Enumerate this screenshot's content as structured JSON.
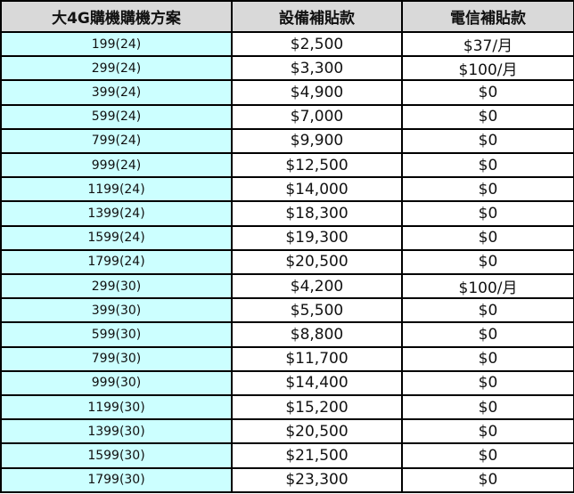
{
  "headers": [
    "大4G購機購機方案",
    "設備補貼款",
    "電信補貼款"
  ],
  "colors": {
    "header_bg": "#d9d9d9",
    "plan_bg": "#ccffff",
    "border": "#000000"
  },
  "rows": [
    [
      "199(24)",
      "$2,500",
      "$37/月"
    ],
    [
      "299(24)",
      "$3,300",
      "$100/月"
    ],
    [
      "399(24)",
      "$4,900",
      "$0"
    ],
    [
      "599(24)",
      "$7,000",
      "$0"
    ],
    [
      "799(24)",
      "$9,900",
      "$0"
    ],
    [
      "999(24)",
      "$12,500",
      "$0"
    ],
    [
      "1199(24)",
      "$14,000",
      "$0"
    ],
    [
      "1399(24)",
      "$18,300",
      "$0"
    ],
    [
      "1599(24)",
      "$19,300",
      "$0"
    ],
    [
      "1799(24)",
      "$20,500",
      "$0"
    ],
    [
      "299(30)",
      "$4,200",
      "$100/月"
    ],
    [
      "399(30)",
      "$5,500",
      "$0"
    ],
    [
      "599(30)",
      "$8,800",
      "$0"
    ],
    [
      "799(30)",
      "$11,700",
      "$0"
    ],
    [
      "999(30)",
      "$14,400",
      "$0"
    ],
    [
      "1199(30)",
      "$15,200",
      "$0"
    ],
    [
      "1399(30)",
      "$20,500",
      "$0"
    ],
    [
      "1599(30)",
      "$21,500",
      "$0"
    ],
    [
      "1799(30)",
      "$23,300",
      "$0"
    ]
  ]
}
